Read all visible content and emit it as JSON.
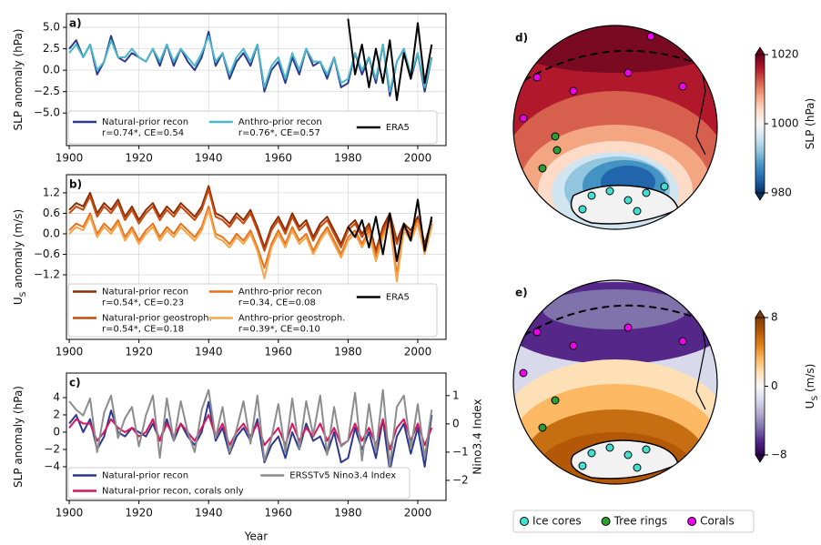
{
  "chart_data": [
    {
      "type": "line",
      "panel": "a)",
      "ylabel": [
        "SLP anomaly (hPa)"
      ],
      "grid": true,
      "legend_rows": 1,
      "x": [
        1900,
        1902,
        1904,
        1906,
        1908,
        1910,
        1912,
        1914,
        1916,
        1918,
        1920,
        1922,
        1924,
        1926,
        1928,
        1930,
        1932,
        1934,
        1936,
        1938,
        1940,
        1942,
        1944,
        1946,
        1948,
        1950,
        1952,
        1954,
        1956,
        1958,
        1960,
        1962,
        1964,
        1966,
        1968,
        1970,
        1972,
        1974,
        1976,
        1978,
        1980,
        1982,
        1984,
        1986,
        1988,
        1990,
        1992,
        1994,
        1996,
        1998,
        2000,
        2002,
        2004
      ],
      "xlim": [
        1899.2,
        2008.1
      ],
      "xticks": [
        1900,
        1920,
        1940,
        1960,
        1980,
        2000
      ],
      "ylim": [
        -8.8,
        6.6
      ],
      "yticks": [
        {
          "value": -5,
          "label": "−5.0"
        },
        {
          "value": -2.5,
          "label": "−2.5"
        },
        {
          "value": 0,
          "label": "0.0"
        },
        {
          "value": 2.5,
          "label": "2.5"
        },
        {
          "value": 5,
          "label": "5.0"
        }
      ],
      "series": [
        {
          "name": "Natural-prior recon",
          "stats": "r=0.74*, CE=0.54",
          "color": "#2b3990",
          "values": [
            2.5,
            3.5,
            1.5,
            3.0,
            -0.5,
            1.0,
            4.0,
            1.5,
            1.0,
            2.0,
            1.5,
            1.0,
            2.5,
            0.5,
            3.0,
            0.5,
            2.5,
            1.0,
            0.0,
            1.5,
            4.5,
            0.5,
            2.0,
            -1.0,
            1.0,
            2.0,
            0.5,
            3.0,
            -2.5,
            0.0,
            1.0,
            -1.5,
            1.5,
            -0.5,
            2.5,
            0.5,
            1.0,
            -1.0,
            1.5,
            -2.0,
            -1.5,
            2.0,
            -0.5,
            1.5,
            -1.5,
            3.0,
            -3.0,
            1.0,
            2.5,
            -1.0,
            2.0,
            -2.5,
            1.5
          ]
        },
        {
          "name": "Anthro-prior recon",
          "stats": "r=0.76*, CE=0.57",
          "color": "#4ab8c9",
          "values": [
            2.0,
            3.0,
            1.5,
            3.0,
            0.0,
            1.0,
            3.5,
            1.5,
            1.5,
            2.5,
            1.5,
            1.0,
            2.5,
            1.0,
            3.0,
            1.0,
            2.5,
            1.5,
            0.5,
            2.0,
            4.0,
            1.0,
            2.0,
            -0.5,
            1.5,
            2.5,
            1.0,
            3.0,
            -2.0,
            0.5,
            1.5,
            -1.0,
            2.0,
            0.0,
            2.5,
            1.0,
            1.0,
            -0.5,
            1.5,
            -1.5,
            -1.0,
            2.0,
            0.0,
            1.5,
            -1.0,
            3.0,
            -2.5,
            1.0,
            2.5,
            -0.5,
            2.0,
            -2.0,
            1.5
          ]
        },
        {
          "name": "ERA5",
          "color": "#000000",
          "x": [
            1980,
            1982,
            1984,
            1986,
            1988,
            1990,
            1992,
            1994,
            1996,
            1998,
            2000,
            2002,
            2004
          ],
          "values": [
            6.0,
            -0.5,
            3.0,
            -2.0,
            2.5,
            -1.5,
            3.5,
            -3.5,
            2.0,
            -1.0,
            5.5,
            -1.5,
            3.0
          ]
        }
      ]
    },
    {
      "type": "line",
      "panel": "b)",
      "ylabel": [
        "U",
        "S",
        " anomaly (m/s)"
      ],
      "grid": true,
      "legend_rows": 2,
      "x": [
        1900,
        1902,
        1904,
        1906,
        1908,
        1910,
        1912,
        1914,
        1916,
        1918,
        1920,
        1922,
        1924,
        1926,
        1928,
        1930,
        1932,
        1934,
        1936,
        1938,
        1940,
        1942,
        1944,
        1946,
        1948,
        1950,
        1952,
        1954,
        1956,
        1958,
        1960,
        1962,
        1964,
        1966,
        1968,
        1970,
        1972,
        1974,
        1976,
        1978,
        1980,
        1982,
        1984,
        1986,
        1988,
        1990,
        1992,
        1994,
        1996,
        1998,
        2000,
        2002,
        2004
      ],
      "xlim": [
        1899.2,
        2008.1
      ],
      "xticks": [
        1900,
        1920,
        1940,
        1960,
        1980,
        2000
      ],
      "ylim": [
        -3.09,
        1.73
      ],
      "yticks": [
        {
          "value": -1.2,
          "label": "−1.2"
        },
        {
          "value": -0.6,
          "label": "−0.6"
        },
        {
          "value": 0,
          "label": "0.0"
        },
        0.6,
        1.2
      ],
      "series": [
        {
          "name": "Natural-prior recon",
          "stats": "r=0.54*, CE=0.23",
          "color": "#8a2c04",
          "values": [
            0.7,
            0.9,
            0.8,
            1.2,
            0.6,
            0.9,
            0.7,
            1.0,
            0.5,
            0.8,
            0.4,
            0.7,
            0.9,
            0.5,
            0.8,
            0.6,
            0.9,
            0.7,
            0.5,
            0.8,
            1.4,
            0.6,
            0.5,
            0.3,
            0.6,
            0.4,
            0.7,
            0.2,
            -0.4,
            0.2,
            0.5,
            0.1,
            0.6,
            0.2,
            0.4,
            -0.1,
            0.3,
            0.5,
            0.1,
            -0.3,
            0.2,
            0.4,
            0.0,
            0.3,
            -0.5,
            0.2,
            0.6,
            -0.2,
            0.3,
            0.1,
            0.5,
            -0.3,
            0.4
          ]
        },
        {
          "name": "Natural-prior geostroph.",
          "stats": "r=0.54*, CE=0.18",
          "color": "#c94a0c",
          "values": [
            0.6,
            0.8,
            0.7,
            1.1,
            0.5,
            0.8,
            0.6,
            0.9,
            0.4,
            0.7,
            0.3,
            0.6,
            0.8,
            0.4,
            0.7,
            0.5,
            0.8,
            0.6,
            0.4,
            0.7,
            1.3,
            0.5,
            0.4,
            0.2,
            0.5,
            0.3,
            0.6,
            0.1,
            -0.5,
            0.1,
            0.4,
            0.0,
            0.5,
            0.1,
            0.3,
            -0.2,
            0.2,
            0.4,
            0.0,
            -0.4,
            0.1,
            0.3,
            -0.1,
            0.2,
            -0.6,
            0.1,
            0.5,
            -0.3,
            0.2,
            0.0,
            0.4,
            -0.4,
            0.3
          ]
        },
        {
          "name": "Anthro-prior recon",
          "stats": "r=0.34, CE=0.08",
          "color": "#e8711a",
          "values": [
            0.1,
            0.3,
            0.2,
            0.6,
            0.0,
            0.3,
            0.1,
            0.4,
            -0.1,
            0.2,
            -0.2,
            0.1,
            0.3,
            -0.1,
            0.2,
            0.0,
            0.3,
            0.1,
            -0.1,
            0.2,
            0.8,
            0.0,
            -0.1,
            -0.3,
            0.0,
            -0.2,
            0.1,
            -0.4,
            -1.0,
            -0.3,
            0.1,
            -0.3,
            0.2,
            -0.2,
            0.0,
            -0.5,
            -0.1,
            0.2,
            -0.2,
            -0.6,
            -0.1,
            0.1,
            -0.3,
            0.1,
            -0.7,
            0.0,
            0.4,
            -1.2,
            0.2,
            -0.1,
            0.4,
            -0.5,
            0.3
          ]
        },
        {
          "name": "Anthro-prior geostroph.",
          "stats": "r=0.39*, CE=0.10",
          "color": "#f6a54a",
          "values": [
            0.0,
            0.2,
            0.1,
            0.5,
            -0.1,
            0.2,
            0.0,
            0.3,
            -0.2,
            0.1,
            -0.3,
            0.0,
            0.2,
            -0.2,
            0.1,
            -0.1,
            0.2,
            0.0,
            -0.2,
            0.1,
            0.7,
            -0.1,
            -0.2,
            -0.4,
            -0.1,
            -0.3,
            0.0,
            -0.5,
            -1.3,
            -0.4,
            0.0,
            -0.4,
            0.1,
            -0.3,
            -0.1,
            -0.6,
            -0.2,
            0.1,
            -0.3,
            -0.7,
            -0.2,
            0.0,
            -0.4,
            0.0,
            -0.8,
            -0.1,
            0.3,
            -1.4,
            0.1,
            -0.2,
            0.3,
            -0.6,
            0.2
          ]
        },
        {
          "name": "ERA5",
          "color": "#000000",
          "x": [
            1980,
            1982,
            1984,
            1986,
            1988,
            1990,
            1992,
            1994,
            1996,
            1998,
            2000,
            2002,
            2004
          ],
          "values": [
            0.2,
            -0.1,
            0.4,
            -0.4,
            0.5,
            -0.6,
            0.6,
            -0.8,
            0.3,
            -0.2,
            1.0,
            -0.5,
            0.5
          ]
        }
      ]
    },
    {
      "type": "line",
      "panel": "c)",
      "ylabel": [
        "SLP anomaly (hPa)"
      ],
      "y2label": "Nino3.4 Index",
      "xlabel": "Year",
      "grid": false,
      "legend_rows": 2,
      "x": [
        1900,
        1902,
        1904,
        1906,
        1908,
        1910,
        1912,
        1914,
        1916,
        1918,
        1920,
        1922,
        1924,
        1926,
        1928,
        1930,
        1932,
        1934,
        1936,
        1938,
        1940,
        1942,
        1944,
        1946,
        1948,
        1950,
        1952,
        1954,
        1956,
        1958,
        1960,
        1962,
        1964,
        1966,
        1968,
        1970,
        1972,
        1974,
        1976,
        1978,
        1980,
        1982,
        1984,
        1986,
        1988,
        1990,
        1992,
        1994,
        1996,
        1998,
        2000,
        2002,
        2004
      ],
      "xlim": [
        1899.2,
        2008.1
      ],
      "xticks": [
        1900,
        1920,
        1940,
        1960,
        1980,
        2000
      ],
      "ylim": [
        -7.9,
        6.84
      ],
      "yticks": [
        {
          "value": -4,
          "label": "−4"
        },
        {
          "value": -2,
          "label": "−2"
        },
        0,
        2,
        4
      ],
      "y2lim": [
        -2.71,
        1.8
      ],
      "y2ticks": [
        {
          "value": -2,
          "label": "−2"
        },
        {
          "value": -1,
          "label": "−1"
        },
        0,
        1
      ],
      "series": [
        {
          "name": "Natural-prior recon",
          "color": "#2b3990",
          "values": [
            1.0,
            2.0,
            0.0,
            1.5,
            -2.0,
            -0.5,
            2.5,
            0.0,
            -0.5,
            0.5,
            0.0,
            -0.5,
            1.0,
            -1.0,
            1.5,
            -1.0,
            1.0,
            -0.5,
            -1.5,
            0.0,
            3.5,
            -1.0,
            0.5,
            -2.5,
            -0.5,
            0.5,
            -1.0,
            1.5,
            -3.5,
            -1.5,
            -0.5,
            -3.0,
            0.0,
            -2.0,
            1.0,
            -1.0,
            -0.5,
            -2.5,
            0.0,
            -3.5,
            -3.0,
            0.5,
            -2.0,
            0.0,
            -3.0,
            1.5,
            -4.5,
            -0.5,
            1.0,
            -2.5,
            0.5,
            -4.0,
            2.0
          ]
        },
        {
          "name": "Natural-prior recon, corals only",
          "color": "#d6175f",
          "values": [
            0.5,
            1.5,
            1.0,
            1.0,
            -1.0,
            0.0,
            1.5,
            0.5,
            0.0,
            0.5,
            -0.5,
            0.0,
            1.5,
            -1.0,
            1.0,
            -0.5,
            1.0,
            0.0,
            -1.0,
            0.5,
            2.0,
            -0.5,
            1.0,
            -1.5,
            0.0,
            1.0,
            -0.5,
            1.0,
            -1.5,
            -0.5,
            0.5,
            -1.5,
            1.0,
            -1.0,
            0.5,
            -0.5,
            1.0,
            -1.0,
            0.5,
            -1.5,
            -1.0,
            1.0,
            -1.0,
            0.5,
            -1.5,
            1.5,
            -2.0,
            0.5,
            1.5,
            -1.0,
            1.0,
            -1.5,
            0.5
          ]
        },
        {
          "name": "ERSSTv5 Nino3.4 Index",
          "color": "#8c8c8c",
          "axis": "y2",
          "values": [
            0.8,
            0.5,
            0.3,
            0.9,
            -1.0,
            0.4,
            1.0,
            -0.5,
            0.2,
            0.6,
            -0.8,
            0.3,
            1.0,
            -1.2,
            0.9,
            -0.6,
            0.8,
            -0.3,
            -1.0,
            0.5,
            1.2,
            -0.5,
            0.6,
            -1.0,
            -0.2,
            0.8,
            -0.7,
            1.0,
            -1.3,
            -0.5,
            0.7,
            -1.0,
            0.9,
            -0.9,
            0.8,
            -0.4,
            1.0,
            -1.1,
            0.6,
            -0.8,
            -0.6,
            1.1,
            -1.3,
            0.7,
            -1.0,
            1.2,
            -1.5,
            0.6,
            1.0,
            -0.9,
            0.7,
            -1.2,
            0.5
          ]
        }
      ]
    },
    {
      "type": "map",
      "panel": "d)",
      "colorbar_label": [
        "SLP (hPa)"
      ],
      "clim": [
        980,
        1020
      ],
      "cticks": [
        980,
        1000,
        1020
      ],
      "colors": [
        "#053061",
        "#2166ac",
        "#4393c3",
        "#92c5de",
        "#d1e5f0",
        "#f7f7f7",
        "#fddbc7",
        "#f4a582",
        "#d6604d",
        "#b2182b",
        "#67001f"
      ]
    },
    {
      "type": "map",
      "panel": "e)",
      "colorbar_label": [
        "U",
        "S",
        " (m/s)"
      ],
      "clim": [
        -8,
        8
      ],
      "cticks": [
        {
          "value": -8,
          "label": "−8"
        },
        0,
        8
      ],
      "colors": [
        "#2d004b",
        "#542788",
        "#8073ac",
        "#b2abd2",
        "#d8daeb",
        "#f7f7f7",
        "#fee0b6",
        "#fdb863",
        "#e08214",
        "#b35806",
        "#7f3b08"
      ]
    }
  ],
  "proxy_legend": [
    {
      "name": "Ice cores",
      "color": "#40e0d0"
    },
    {
      "name": "Tree rings",
      "color": "#2ca02c"
    },
    {
      "name": "Corals",
      "color": "#ee00ee"
    }
  ]
}
